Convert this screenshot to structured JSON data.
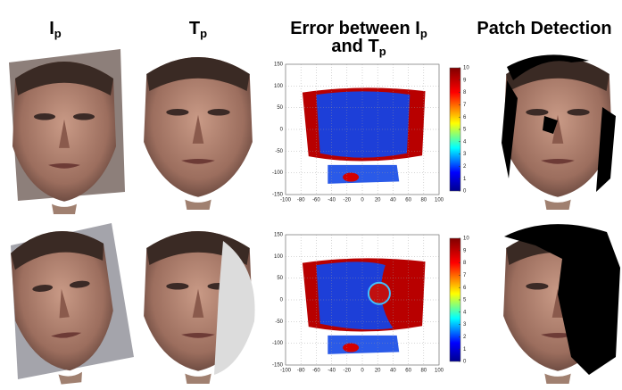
{
  "headers": [
    [
      "I",
      "p"
    ],
    [
      "T",
      "p"
    ],
    [
      "Error between I",
      "p",
      "and T",
      "p"
    ],
    [
      "Patch Detection"
    ]
  ],
  "error_maps": [
    {
      "xticks": [
        -100,
        -80,
        -60,
        -40,
        -20,
        0,
        20,
        40,
        60,
        80,
        100
      ],
      "yticks": [
        -150,
        -100,
        -50,
        0,
        50,
        100,
        150
      ],
      "colorbar_ticks": [
        0,
        1,
        2,
        3,
        4,
        5,
        6,
        7,
        8,
        9,
        10
      ]
    },
    {
      "xticks": [
        -100,
        -80,
        -60,
        -40,
        -20,
        0,
        20,
        40,
        60,
        80,
        100
      ],
      "yticks": [
        -150,
        -100,
        -50,
        0,
        50,
        100,
        150
      ],
      "colorbar_ticks": [
        0,
        1,
        2,
        3,
        4,
        5,
        6,
        7,
        8,
        9,
        10
      ]
    }
  ]
}
